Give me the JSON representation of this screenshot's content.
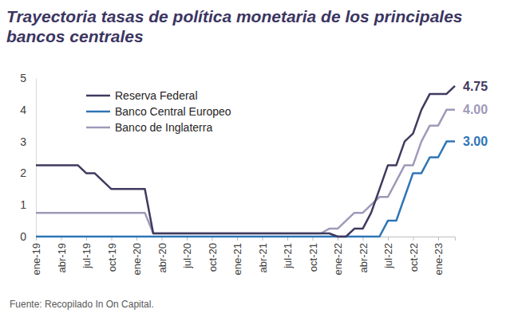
{
  "chart_data": {
    "type": "line",
    "title": "Trayectoria tasas de política monetaria de los principales bancos centrales",
    "source": "Fuente: Recopilado In On Capital.",
    "categories": [
      "ene-19",
      null,
      null,
      "abr-19",
      null,
      null,
      "jul-19",
      null,
      null,
      "oct-19",
      null,
      null,
      "ene-20",
      null,
      null,
      "abr-20",
      null,
      null,
      "jul-20",
      null,
      null,
      "oct-20",
      null,
      null,
      "ene-21",
      null,
      null,
      "abr-21",
      null,
      null,
      "jul-21",
      null,
      null,
      "oct-21",
      null,
      null,
      "ene-22",
      null,
      null,
      "abr-22",
      null,
      null,
      "jul-22",
      null,
      null,
      "oct-22",
      null,
      null,
      "ene-23",
      null,
      null
    ],
    "series": [
      {
        "name": "Reserva Federal",
        "color": "#3f3a5e",
        "values": [
          2.25,
          2.25,
          2.25,
          2.25,
          2.25,
          2.25,
          2.0,
          2.0,
          1.75,
          1.5,
          1.5,
          1.5,
          1.5,
          1.5,
          0.1,
          0.1,
          0.1,
          0.1,
          0.1,
          0.1,
          0.1,
          0.1,
          0.1,
          0.1,
          0.1,
          0.1,
          0.1,
          0.1,
          0.1,
          0.1,
          0.1,
          0.1,
          0.1,
          0.1,
          0.1,
          0.1,
          0,
          0,
          0.25,
          0.25,
          0.75,
          1.5,
          2.25,
          2.25,
          3.0,
          3.25,
          4.0,
          4.5,
          4.5,
          4.5,
          4.75
        ],
        "value_labels": [
          null,
          null,
          null,
          null,
          null,
          null,
          null,
          null,
          null,
          null,
          null,
          null,
          null,
          null,
          null,
          null,
          null,
          null,
          null,
          null,
          null,
          null,
          null,
          null,
          null,
          null,
          null,
          null,
          null,
          null,
          null,
          null,
          null,
          null,
          null,
          null,
          null,
          null,
          null,
          null,
          null,
          null,
          null,
          null,
          null,
          null,
          null,
          null,
          null,
          null,
          "4.75"
        ]
      },
      {
        "name": "Banco Central Europeo",
        "color": "#2e75b6",
        "values": [
          0,
          0,
          0,
          0,
          0,
          0,
          0,
          0,
          0,
          0,
          0,
          0,
          0,
          0,
          0,
          0,
          0,
          0,
          0,
          0,
          0,
          0,
          0,
          0,
          0,
          0,
          0,
          0,
          0,
          0,
          0,
          0,
          0,
          0,
          0,
          0,
          0,
          0,
          0,
          0,
          0,
          0,
          0.5,
          0.5,
          1.25,
          2.0,
          2.0,
          2.5,
          2.5,
          3.0,
          3.0
        ],
        "value_labels": [
          null,
          null,
          null,
          null,
          null,
          null,
          null,
          null,
          null,
          null,
          null,
          null,
          null,
          null,
          null,
          null,
          null,
          null,
          null,
          null,
          null,
          null,
          null,
          null,
          null,
          null,
          null,
          null,
          null,
          null,
          null,
          null,
          null,
          null,
          null,
          null,
          null,
          null,
          null,
          null,
          null,
          null,
          null,
          null,
          null,
          null,
          null,
          null,
          null,
          null,
          "3.00"
        ]
      },
      {
        "name": "Banco de Inglaterra",
        "color": "#9f99b9",
        "values": [
          0.75,
          0.75,
          0.75,
          0.75,
          0.75,
          0.75,
          0.75,
          0.75,
          0.75,
          0.75,
          0.75,
          0.75,
          0.75,
          0.75,
          0.1,
          0.1,
          0.1,
          0.1,
          0.1,
          0.1,
          0.1,
          0.1,
          0.1,
          0.1,
          0.1,
          0.1,
          0.1,
          0.1,
          0.1,
          0.1,
          0.1,
          0.1,
          0.1,
          0.1,
          0.1,
          0.25,
          0.25,
          0.5,
          0.75,
          0.75,
          1.0,
          1.25,
          1.25,
          1.75,
          2.25,
          2.25,
          3.0,
          3.5,
          3.5,
          4.0,
          4.0
        ],
        "value_labels": [
          null,
          null,
          null,
          null,
          null,
          null,
          null,
          null,
          null,
          null,
          null,
          null,
          null,
          null,
          null,
          null,
          null,
          null,
          null,
          null,
          null,
          null,
          null,
          null,
          null,
          null,
          null,
          null,
          null,
          null,
          null,
          null,
          null,
          null,
          null,
          null,
          null,
          null,
          null,
          null,
          null,
          null,
          null,
          null,
          null,
          null,
          null,
          null,
          null,
          null,
          "4.00"
        ]
      }
    ],
    "ylim": [
      0,
      5
    ],
    "yticks": [
      0,
      1,
      2,
      3,
      4,
      5
    ],
    "grid": false,
    "legend": "top-left"
  }
}
